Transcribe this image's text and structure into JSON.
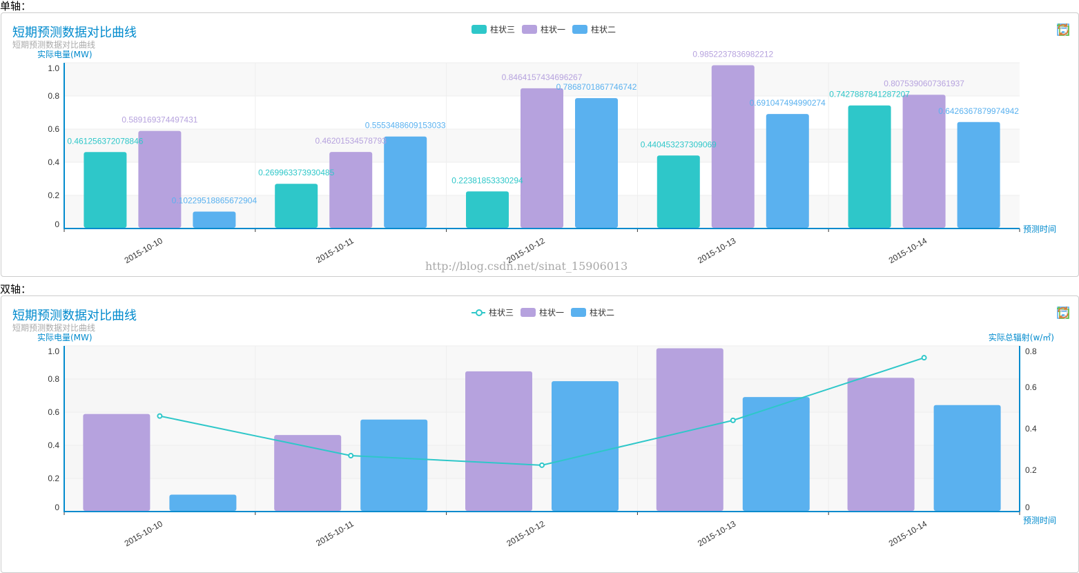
{
  "sections": {
    "single_axis": "单轴：",
    "dual_axis": "双轴："
  },
  "watermark": "http://blog.csdn.net/sinat_15906013",
  "toolbox": [
    {
      "name": "save-image-icon",
      "color": "#5ab1ef"
    },
    {
      "name": "data-zoom-icon",
      "color": "#67c23a"
    },
    {
      "name": "data-zoom-reset-icon",
      "color": "#cccccc"
    },
    {
      "name": "restore-icon",
      "color": "#d87a36"
    }
  ],
  "colors": {
    "series3": "#2ec7c9",
    "series1": "#b6a2de",
    "series2": "#5ab1ef",
    "axis": "#008acd",
    "title": "#008acd",
    "subtitle": "#aaaaaa"
  },
  "chart_data": [
    {
      "type": "bar",
      "title": "短期预测数据对比曲线",
      "subtitle": "短期预测数据对比曲线",
      "ylabel": "实际电量(MW)",
      "xlabel": "预测时间",
      "ylim": [
        0,
        1.0
      ],
      "yticks": [
        "0",
        "0.2",
        "0.4",
        "0.6",
        "0.8",
        "1.0"
      ],
      "grid": true,
      "legend_position": "top-center",
      "categories": [
        "2015-10-10",
        "2015-10-11",
        "2015-10-12",
        "2015-10-13",
        "2015-10-14"
      ],
      "series": [
        {
          "name": "柱状三",
          "type": "bar",
          "color": "#2ec7c9",
          "values": [
            0.461256372078846,
            0.269963373930485,
            0.223818533302942,
            0.440453237309069,
            0.7427887841287207
          ],
          "labels": [
            "0.461256372078846",
            "0.269963373930485",
            "0.22381853330294",
            "0.440453237309069",
            "0.7427887841287207"
          ]
        },
        {
          "name": "柱状一",
          "type": "bar",
          "color": "#b6a2de",
          "values": [
            0.589169374497431,
            0.46201534578793,
            0.8464157434696267,
            0.9852237836982212,
            0.8075390607361937
          ],
          "labels": [
            "0.589169374497431",
            "0.46201534578793",
            "0.8464157434696267",
            "0.9852237836982212",
            "0.8075390607361937"
          ]
        },
        {
          "name": "柱状二",
          "type": "bar",
          "color": "#5ab1ef",
          "values": [
            0.10229518865672904,
            0.5553488609153033,
            0.7868701867746742,
            0.691047494990274,
            0.6426367879974942
          ],
          "labels": [
            "0.10229518865672904",
            "0.5553488609153033",
            "0.7868701867746742",
            "0.691047494990274",
            "0.6426367879974942"
          ]
        }
      ]
    },
    {
      "type": "bar",
      "title": "短期预测数据对比曲线",
      "subtitle": "短期预测数据对比曲线",
      "ylabel": "实际电量(MW)",
      "y2label": "实际总辐射(w/㎡)",
      "xlabel": "预测时间",
      "ylim": [
        0,
        1.0
      ],
      "y2lim": [
        0,
        0.8
      ],
      "yticks": [
        "0",
        "0.2",
        "0.4",
        "0.6",
        "0.8",
        "1.0"
      ],
      "y2ticks": [
        "0",
        "0.2",
        "0.4",
        "0.6",
        "0.8"
      ],
      "grid": true,
      "legend_position": "top-center",
      "categories": [
        "2015-10-10",
        "2015-10-11",
        "2015-10-12",
        "2015-10-13",
        "2015-10-14"
      ],
      "series": [
        {
          "name": "柱状三",
          "type": "line",
          "axis": "right",
          "color": "#2ec7c9",
          "values": [
            0.461256372078846,
            0.269963373930485,
            0.223818533302942,
            0.440453237309069,
            0.7427887841287207
          ]
        },
        {
          "name": "柱状一",
          "type": "bar",
          "color": "#b6a2de",
          "values": [
            0.589169374497431,
            0.46201534578793,
            0.8464157434696267,
            0.9852237836982212,
            0.8075390607361937
          ]
        },
        {
          "name": "柱状二",
          "type": "bar",
          "color": "#5ab1ef",
          "values": [
            0.10229518865672904,
            0.5553488609153033,
            0.7868701867746742,
            0.691047494990274,
            0.6426367879974942
          ]
        }
      ]
    }
  ]
}
